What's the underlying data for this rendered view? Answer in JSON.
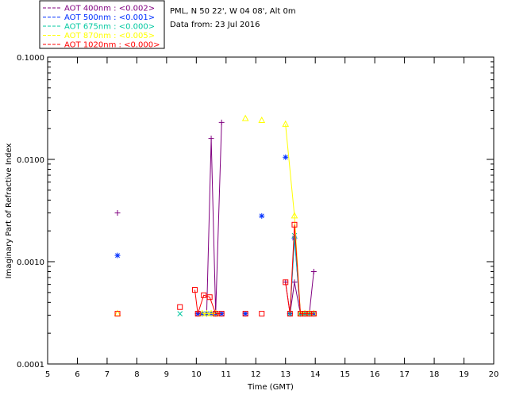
{
  "chart_data": {
    "type": "scatter",
    "title": "",
    "info_lines": [
      "PML, N 50 22', W 04 08', Alt 0m",
      "Data from: 23 Jul 2016"
    ],
    "xlabel": "Time (GMT)",
    "ylabel": "Imaginary Part of Refractive Index",
    "xlim": [
      5,
      20
    ],
    "ylim": [
      0.0001,
      0.1
    ],
    "yscale": "log",
    "x_ticks": [
      5,
      6,
      7,
      8,
      9,
      10,
      11,
      12,
      13,
      14,
      15,
      16,
      17,
      18,
      19,
      20
    ],
    "y_ticks": [
      {
        "value": 0.0001,
        "label": "0.0001"
      },
      {
        "value": 0.001,
        "label": "0.0010"
      },
      {
        "value": 0.01,
        "label": "0.0100"
      },
      {
        "value": 0.1,
        "label": "0.1000"
      }
    ],
    "grid": false,
    "legend_position": "top-left-outside",
    "series": [
      {
        "name": "AOT  400nm : <0.002>",
        "color": "#800080",
        "marker": "plus",
        "isolated": [
          [
            7.35,
            0.003
          ]
        ],
        "segments": [
          [
            [
              10.05,
              0.00031
            ],
            [
              10.2,
              0.00031
            ],
            [
              10.35,
              0.00031
            ],
            [
              10.5,
              0.016
            ],
            [
              10.65,
              0.00031
            ],
            [
              10.85,
              0.023
            ]
          ],
          [
            [
              13.0,
              0.00063
            ],
            [
              13.15,
              0.00031
            ],
            [
              13.3,
              0.00063
            ],
            [
              13.5,
              0.00031
            ],
            [
              13.65,
              0.00031
            ],
            [
              13.8,
              0.00031
            ],
            [
              13.95,
              0.0008
            ]
          ]
        ]
      },
      {
        "name": "AOT  500nm : <0.001>",
        "color": "#0030ff",
        "marker": "asterisk",
        "isolated": [
          [
            7.35,
            0.00115
          ],
          [
            11.65,
            0.00031
          ],
          [
            12.2,
            0.0028
          ],
          [
            13.0,
            0.0105
          ]
        ],
        "segments": [
          [
            [
              10.05,
              0.00031
            ],
            [
              10.2,
              0.00031
            ],
            [
              10.35,
              0.00031
            ],
            [
              10.5,
              0.00031
            ],
            [
              10.65,
              0.00031
            ],
            [
              10.85,
              0.00031
            ]
          ],
          [
            [
              13.15,
              0.00031
            ],
            [
              13.3,
              0.0017
            ],
            [
              13.5,
              0.00031
            ],
            [
              13.65,
              0.00031
            ],
            [
              13.8,
              0.00031
            ],
            [
              13.95,
              0.00031
            ]
          ]
        ]
      },
      {
        "name": "AOT  675nm : <0.000>",
        "color": "#00c8a0",
        "marker": "x",
        "isolated": [
          [
            9.45,
            0.00031
          ]
        ],
        "segments": [
          [
            [
              13.15,
              0.00031
            ],
            [
              13.3,
              0.0018
            ],
            [
              13.5,
              0.00031
            ],
            [
              13.65,
              0.00031
            ],
            [
              13.8,
              0.00031
            ]
          ]
        ]
      },
      {
        "name": "AOT  870nm : <0.005>",
        "color": "#ffff00",
        "marker": "triangle",
        "isolated": [
          [
            7.35,
            0.00031
          ],
          [
            11.65,
            0.025
          ],
          [
            12.2,
            0.024
          ]
        ],
        "segments": [
          [
            [
              10.2,
              0.00031
            ],
            [
              10.35,
              0.00031
            ],
            [
              10.5,
              0.00031
            ],
            [
              10.65,
              0.00031
            ]
          ],
          [
            [
              13.0,
              0.022
            ],
            [
              13.3,
              0.0028
            ],
            [
              13.5,
              0.00031
            ],
            [
              13.65,
              0.00031
            ],
            [
              13.8,
              0.00031
            ],
            [
              13.95,
              0.00031
            ]
          ]
        ]
      },
      {
        "name": "AOT 1020nm : <0.000>",
        "color": "#ff0000",
        "marker": "square",
        "isolated": [
          [
            7.35,
            0.00031
          ],
          [
            9.45,
            0.00036
          ],
          [
            11.65,
            0.00031
          ],
          [
            12.2,
            0.00031
          ]
        ],
        "segments": [
          [
            [
              9.95,
              0.00053
            ],
            [
              10.05,
              0.00031
            ],
            [
              10.25,
              0.00047
            ],
            [
              10.45,
              0.00045
            ],
            [
              10.65,
              0.00031
            ],
            [
              10.85,
              0.00031
            ]
          ],
          [
            [
              13.0,
              0.00063
            ],
            [
              13.15,
              0.00031
            ],
            [
              13.3,
              0.0023
            ],
            [
              13.5,
              0.00031
            ],
            [
              13.65,
              0.00031
            ],
            [
              13.8,
              0.00031
            ],
            [
              13.95,
              0.00031
            ]
          ]
        ]
      }
    ]
  }
}
